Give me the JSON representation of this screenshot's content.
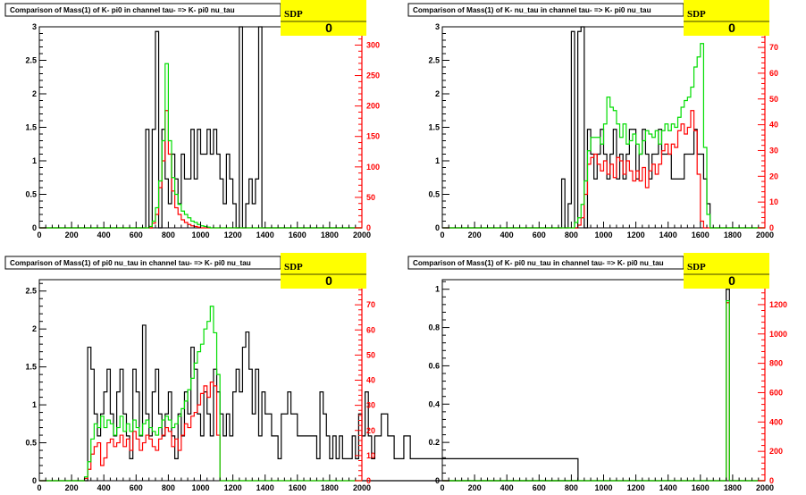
{
  "colors": {
    "black": "#000000",
    "red": "#ff0000",
    "green": "#00dd00",
    "stats_box": "#ffff00"
  },
  "chart_data": [
    {
      "type": "histogram",
      "title": "Comparison of Mass(1) of K- pi0 in channel tau- => K- pi0 nu_tau",
      "stats_label": "SDP",
      "stats_value": "0",
      "bin_width": 20,
      "x_range": [
        0,
        2000
      ],
      "x_ticks": [
        "0",
        "200",
        "400",
        "600",
        "800",
        "1000",
        "1200",
        "1400",
        "1600",
        "1800",
        "2000"
      ],
      "left_axis": {
        "range": [
          0,
          3
        ],
        "ticks": [
          "0",
          "0.5",
          "1",
          "1.5",
          "2",
          "2.5",
          "3"
        ]
      },
      "right_axis": {
        "range": [
          0,
          330
        ],
        "ticks": [
          "0",
          "50",
          "100",
          "150",
          "200",
          "250",
          "300"
        ]
      },
      "series": [
        {
          "color": "black",
          "axis": "left",
          "x0": 660,
          "values": [
            1.47,
            0,
            1.47,
            2.93,
            0,
            1.47,
            0.73,
            0.36,
            1.1,
            0.73,
            0.36,
            1.1,
            0.73,
            0.73,
            1.47,
            0.73,
            1.47,
            1.1,
            1.1,
            1.47,
            1.1,
            1.47,
            1.1,
            0.73,
            0.36,
            1.1,
            0.73,
            0.36,
            0,
            3,
            0,
            0.36,
            0.73,
            0.36,
            0.73,
            3,
            0,
            0,
            0,
            0
          ]
        },
        {
          "color": "red",
          "axis": "left",
          "x0": 660,
          "values": [
            0,
            0,
            0.07,
            0.2,
            0.6,
            1.0,
            1.75,
            1.1,
            0.55,
            0.3,
            0.2,
            0.12,
            0.08,
            0.05,
            0.03,
            0.02,
            0.01,
            0,
            0,
            0,
            0,
            0,
            0,
            0,
            0,
            0,
            0,
            0,
            0,
            0,
            0,
            0,
            0,
            0,
            0,
            0,
            0,
            0,
            0,
            0
          ]
        },
        {
          "color": "green",
          "axis": "left",
          "x0": 660,
          "values": [
            0,
            0.02,
            0.1,
            0.3,
            0.7,
            1.3,
            2.45,
            1.3,
            0.75,
            0.5,
            0.35,
            0.25,
            0.2,
            0.15,
            0.1,
            0.08,
            0.05,
            0.03,
            0.02,
            0.01,
            0,
            0,
            0,
            0,
            0,
            0,
            0,
            0,
            0,
            0,
            0,
            0,
            0,
            0,
            0,
            0,
            0,
            0,
            0,
            0
          ]
        }
      ]
    },
    {
      "type": "histogram",
      "title": "Comparison of Mass(1) of K- nu_tau in channel tau- => K- pi0 nu_tau",
      "stats_label": "SDP",
      "stats_value": "0",
      "bin_width": 20,
      "x_range": [
        0,
        2000
      ],
      "x_ticks": [
        "0",
        "200",
        "400",
        "600",
        "800",
        "1000",
        "1200",
        "1400",
        "1600",
        "1800",
        "2000"
      ],
      "left_axis": {
        "range": [
          0,
          3
        ],
        "ticks": [
          "0",
          "0.5",
          "1",
          "1.5",
          "2",
          "2.5",
          "3"
        ]
      },
      "right_axis": {
        "range": [
          0,
          78
        ],
        "ticks": [
          "0",
          "10",
          "20",
          "30",
          "40",
          "50",
          "60",
          "70"
        ]
      },
      "series": [
        {
          "color": "black",
          "axis": "left",
          "x0": 740,
          "values": [
            0.73,
            0,
            0.36,
            2.93,
            0,
            2.93,
            3,
            0,
            1.47,
            1.1,
            0.73,
            1.1,
            1.47,
            1.1,
            0.73,
            1.1,
            1.47,
            0.73,
            1.1,
            0.73,
            1.1,
            1.47,
            1.47,
            0.73,
            1.1,
            1.47,
            1.1,
            0.73,
            1.1,
            1.1,
            1.47,
            1.1,
            1.1,
            1.1,
            0.73,
            0.73,
            0.73,
            0.73,
            1.1,
            1.1,
            1.1,
            1.47,
            1.1,
            1.1,
            0.73,
            0.36
          ]
        },
        {
          "color": "red",
          "axis": "left",
          "x0": 740,
          "values": [
            0,
            0,
            0,
            0,
            0,
            0.04,
            0.15,
            0.5,
            0.95,
            1.05,
            1.1,
            0.95,
            0.85,
            1.0,
            0.8,
            0.95,
            0.75,
            1.05,
            1.0,
            0.8,
            1.0,
            0.85,
            0.7,
            0.85,
            0.7,
            0.9,
            0.6,
            0.85,
            0.95,
            0.8,
            0.95,
            1.15,
            1.25,
            1.1,
            1.25,
            1.2,
            1.45,
            1.55,
            1.4,
            1.5,
            1.75,
            1.45,
            0.8,
            0.1,
            0,
            0
          ]
        },
        {
          "color": "green",
          "axis": "left",
          "x0": 740,
          "values": [
            0,
            0,
            0,
            0,
            0.08,
            0.15,
            0.35,
            0.7,
            1.15,
            1.35,
            1.35,
            1.35,
            1.25,
            1.55,
            1.95,
            1.8,
            1.75,
            1.55,
            1.35,
            1.55,
            1.25,
            1.3,
            1.4,
            1.25,
            1.1,
            1.3,
            1.45,
            1.4,
            1.35,
            1.45,
            1.25,
            1.45,
            1.55,
            1.45,
            1.55,
            1.5,
            1.65,
            1.8,
            1.9,
            1.95,
            2.1,
            2.4,
            2.55,
            2.75,
            1.2,
            0.2
          ]
        }
      ]
    },
    {
      "type": "histogram",
      "title": "Comparison of Mass(1) of pi0 nu_tau in channel tau- => K- pi0 nu_tau",
      "stats_label": "SDP",
      "stats_value": "0",
      "bin_width": 20,
      "x_range": [
        0,
        2000
      ],
      "x_ticks": [
        "0",
        "200",
        "400",
        "600",
        "800",
        "1000",
        "1200",
        "1400",
        "1600",
        "1800",
        "2000"
      ],
      "left_axis": {
        "range": [
          0,
          2.65
        ],
        "ticks": [
          "0",
          "0.5",
          "1",
          "1.5",
          "2",
          "2.5"
        ]
      },
      "right_axis": {
        "range": [
          0,
          80
        ],
        "ticks": [
          "0",
          "10",
          "20",
          "30",
          "40",
          "50",
          "60",
          "70"
        ]
      },
      "series": [
        {
          "color": "black",
          "axis": "left",
          "x0": 260,
          "values": [
            0,
            0,
            1.76,
            1.47,
            0.88,
            0.59,
            0.88,
            1.17,
            1.47,
            0.88,
            0.59,
            1.17,
            1.47,
            0.88,
            0.59,
            0.29,
            1.47,
            1.17,
            0.59,
            2.05,
            0.88,
            0.59,
            1.17,
            1.47,
            0.88,
            0.59,
            0.88,
            1.17,
            0.59,
            0.29,
            0.88,
            0.59,
            1.17,
            0.88,
            1.76,
            1.47,
            0.88,
            0.59,
            1.17,
            0.88,
            0.59,
            1.47,
            1.17,
            0.88,
            0.59,
            0.88,
            0.59,
            1.17,
            1.47,
            1.17,
            1.76,
            1.96,
            1.47,
            0.88,
            1.47,
            0.59,
            1.17,
            0.88,
            0.88,
            0.59,
            0.59,
            0.29,
            0.88,
            0.88,
            1.17,
            0.88,
            0.88,
            0.59,
            0.59,
            0.59,
            0.59,
            0.59,
            0.59,
            0.29,
            1.17,
            0.88,
            0.59,
            0.29,
            0.59,
            0.29,
            0.59,
            0.29,
            0.29,
            0.29,
            0.59,
            0.29,
            0.88,
            0.59,
            1.17,
            0.59,
            0.29,
            0.59,
            0.59,
            0.88,
            0.88,
            0.59,
            0.59,
            0.29,
            0.29,
            0.29,
            0.59,
            0.59,
            0.29,
            0.29,
            0.29,
            0.29,
            0.29,
            0.29,
            0.29,
            0.29,
            0.29,
            0.29,
            0.29,
            0.29,
            0.29,
            0.29,
            0.29,
            0.29,
            0.29,
            0.29,
            0.29,
            0.29,
            0.29,
            0.29,
            0.29,
            0.29,
            0.29,
            0.29,
            0.29,
            0.29,
            0.29,
            0.29,
            0.29,
            0.29,
            0.29,
            0.29,
            0.29,
            0.29,
            0.29,
            0.29,
            0.29,
            0.29,
            0.29,
            0.29,
            0.29,
            0.29,
            0.29,
            0.29,
            0.29,
            0.29,
            0.29,
            0.29,
            0.29,
            0.29
          ]
        },
        {
          "color": "red",
          "axis": "left",
          "x0": 260,
          "values": [
            0,
            0.03,
            0.15,
            0.35,
            0.45,
            0.5,
            0.2,
            0.3,
            0.5,
            0.55,
            0.45,
            0.5,
            0.6,
            0.45,
            0.55,
            0.4,
            0.65,
            0.55,
            0.4,
            0.5,
            0.6,
            0.55,
            0.45,
            0.4,
            0.55,
            0.6,
            0.7,
            0.65,
            0.45,
            0.55,
            0.4,
            0.6,
            0.75,
            0.7,
            0.85,
            0.9,
            1.0,
            1.15,
            1.25,
            1.1,
            1.3,
            1.25,
            0.6,
            0
          ]
        },
        {
          "color": "green",
          "axis": "left",
          "x0": 260,
          "values": [
            0,
            0.05,
            0.25,
            0.55,
            0.75,
            0.7,
            0.85,
            0.7,
            0.8,
            0.75,
            0.6,
            0.7,
            0.85,
            0.65,
            0.75,
            0.65,
            0.8,
            0.7,
            0.6,
            0.75,
            0.8,
            0.7,
            0.65,
            0.6,
            0.7,
            0.8,
            0.85,
            0.8,
            0.7,
            0.75,
            0.85,
            0.95,
            1.05,
            1.2,
            1.35,
            1.55,
            1.7,
            1.8,
            2.0,
            2.1,
            2.3,
            1.95,
            1.4,
            0
          ]
        }
      ]
    },
    {
      "type": "histogram",
      "title": "Comparison of Mass(1) of K- pi0 nu_tau in channel tau- => K- pi0 nu_tau",
      "stats_label": "SDP",
      "stats_value": "0",
      "bin_width": 20,
      "x_range": [
        0,
        2000
      ],
      "x_ticks": [
        "0",
        "200",
        "400",
        "600",
        "800",
        "1000",
        "1200",
        "1400",
        "1600",
        "1800",
        "2000"
      ],
      "left_axis": {
        "range": [
          0,
          1.05
        ],
        "ticks": [
          "0",
          "0.2",
          "0.4",
          "0.6",
          "0.8",
          "1"
        ]
      },
      "right_axis": {
        "range": [
          0,
          1370
        ],
        "ticks": [
          "0",
          "200",
          "400",
          "600",
          "800",
          "1000",
          "1200"
        ]
      },
      "series": [
        {
          "color": "black",
          "axis": "left",
          "x0": 1760,
          "values": [
            1.0
          ]
        },
        {
          "color": "red",
          "axis": "left",
          "x0": 1760,
          "values": [
            0.93
          ]
        },
        {
          "color": "green",
          "axis": "left",
          "x0": 1760,
          "values": [
            0.94
          ]
        }
      ]
    }
  ]
}
